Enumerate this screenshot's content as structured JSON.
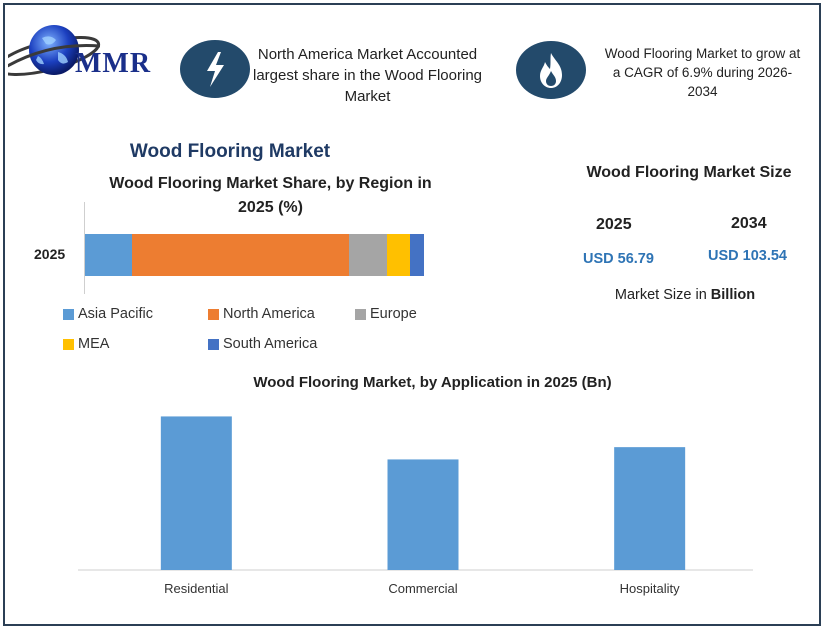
{
  "brand": {
    "logo_text": "MMR"
  },
  "header": {
    "highlight_1": "North America Market Accounted largest share in the Wood Flooring Market",
    "highlight_2": "Wood Flooring Market to grow at a CAGR of 6.9% during 2026-2034",
    "badge_1_icon": "lightning-bolt-icon",
    "badge_2_icon": "flame-icon"
  },
  "main_title": "Wood Flooring Market",
  "market_size": {
    "title": "Wood Flooring Market Size",
    "years": [
      "2025",
      "2034"
    ],
    "values": [
      "USD 56.79",
      "USD 103.54"
    ],
    "unit_prefix": "Market Size in",
    "unit_bold": "Billion"
  },
  "colors": {
    "asia_pacific": "#5b9bd5",
    "north_america": "#ed7d31",
    "europe": "#a5a5a5",
    "mea": "#ffc000",
    "south_america": "#4472c4",
    "application_bars": "#5b9bd5",
    "badge": "#234a6b",
    "accent_text": "#2e74b5"
  },
  "chart_data": [
    {
      "type": "bar",
      "orientation": "horizontal-stacked",
      "title": "Wood Flooring Market Share, by Region in 2025 (%)",
      "categories": [
        "2025"
      ],
      "series": [
        {
          "name": "Asia Pacific",
          "values": [
            14
          ]
        },
        {
          "name": "North America",
          "values": [
            64
          ]
        },
        {
          "name": "Europe",
          "values": [
            11
          ]
        },
        {
          "name": "MEA",
          "values": [
            7
          ]
        },
        {
          "name": "South America",
          "values": [
            4
          ]
        }
      ],
      "legend": "bottom"
    },
    {
      "type": "bar",
      "title": "Wood Flooring Market, by Application in 2025 (Bn)",
      "categories": [
        "Residential",
        "Commercial",
        "Hospitality"
      ],
      "values": [
        25,
        18,
        20
      ],
      "ylim": [
        0,
        28
      ],
      "grid": false
    }
  ]
}
